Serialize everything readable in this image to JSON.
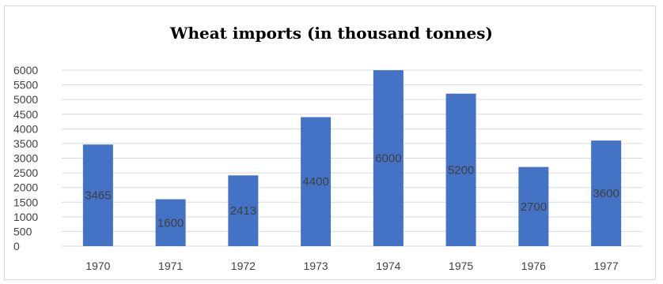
{
  "chart_data": {
    "type": "bar",
    "title": "Wheat imports (in thousand tonnes)",
    "categories": [
      "1970",
      "1971",
      "1972",
      "1973",
      "1974",
      "1975",
      "1976",
      "1977"
    ],
    "values": [
      3465,
      1600,
      2413,
      4400,
      6000,
      5200,
      2700,
      3600
    ],
    "data_labels": [
      "3465",
      "1600",
      "2413",
      "4400",
      "6000",
      "5200",
      "2700",
      "3600"
    ],
    "xlabel": "",
    "ylabel": "",
    "ylim": [
      0,
      6000
    ],
    "yticks": [
      0,
      500,
      1000,
      1500,
      2000,
      2500,
      3000,
      3500,
      4000,
      4500,
      5000,
      5500,
      6000
    ],
    "grid": true,
    "legend": "none",
    "colors": {
      "bar": "#4472c4",
      "grid": "#d9d9d9",
      "text": "#404040"
    }
  }
}
